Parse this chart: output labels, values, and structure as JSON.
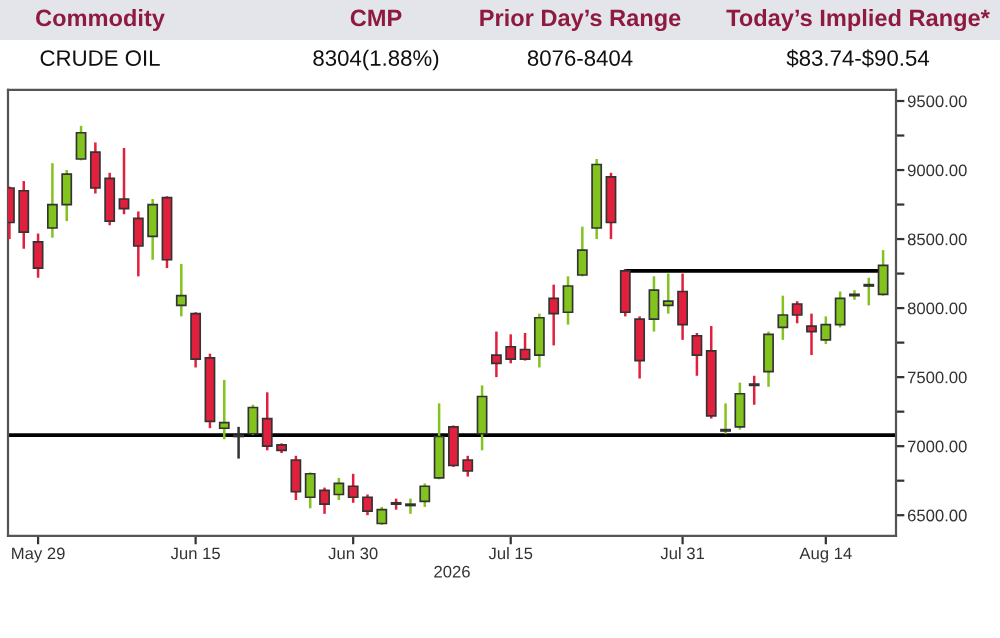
{
  "chart_data": {
    "type": "candlestick",
    "annotations": [
      "Commodity",
      "CMP",
      "Prior Day’s Range",
      "Today’s Implied Range*",
      "CRUDE OIL",
      "8304(1.88%)",
      "8076-8404",
      "$83.74-$90.54"
    ],
    "xlabel": "2026",
    "categories": [
      null,
      null,
      "May 29",
      null,
      null,
      null,
      null,
      null,
      null,
      null,
      null,
      null,
      null,
      "Jun 15",
      null,
      null,
      null,
      null,
      null,
      null,
      null,
      null,
      null,
      null,
      "Jun 30",
      null,
      null,
      null,
      null,
      null,
      null,
      null,
      null,
      null,
      null,
      "Jul 15",
      null,
      null,
      null,
      null,
      null,
      null,
      null,
      null,
      null,
      null,
      null,
      "Jul 31",
      null,
      null,
      null,
      null,
      null,
      null,
      null,
      null,
      null,
      "Aug 14",
      null,
      null,
      null,
      null
    ],
    "ohlc": [
      [
        8870,
        8880,
        8500,
        8620
      ],
      [
        8850,
        8920,
        8430,
        8550
      ],
      [
        8480,
        8540,
        8220,
        8290
      ],
      [
        8580,
        9050,
        8510,
        8750
      ],
      [
        8750,
        9000,
        8630,
        8970
      ],
      [
        9080,
        9320,
        9070,
        9270
      ],
      [
        9130,
        9200,
        8830,
        8870
      ],
      [
        8940,
        8980,
        8600,
        8630
      ],
      [
        8790,
        9160,
        8680,
        8720
      ],
      [
        8650,
        8700,
        8230,
        8450
      ],
      [
        8520,
        8790,
        8350,
        8750
      ],
      [
        8800,
        8810,
        8290,
        8350
      ],
      [
        8020,
        8320,
        7940,
        8090
      ],
      [
        7960,
        7970,
        7570,
        7630
      ],
      [
        7640,
        7670,
        7130,
        7180
      ],
      [
        7130,
        7480,
        7050,
        7170
      ],
      [
        7070,
        7140,
        6910,
        7080
      ],
      [
        7090,
        7300,
        7080,
        7280
      ],
      [
        7200,
        7390,
        6970,
        7000
      ],
      [
        7010,
        7020,
        6950,
        6970
      ],
      [
        6900,
        6930,
        6610,
        6670
      ],
      [
        6630,
        6810,
        6550,
        6800
      ],
      [
        6680,
        6700,
        6510,
        6580
      ],
      [
        6650,
        6770,
        6610,
        6730
      ],
      [
        6710,
        6800,
        6590,
        6630
      ],
      [
        6630,
        6650,
        6500,
        6530
      ],
      [
        6440,
        6560,
        6430,
        6540
      ],
      [
        6590,
        6620,
        6540,
        6580
      ],
      [
        6570,
        6620,
        6510,
        6580
      ],
      [
        6600,
        6730,
        6560,
        6710
      ],
      [
        6770,
        7310,
        6760,
        7070
      ],
      [
        7140,
        7150,
        6850,
        6860
      ],
      [
        6900,
        6930,
        6780,
        6820
      ],
      [
        7090,
        7440,
        6970,
        7360
      ],
      [
        7660,
        7830,
        7500,
        7600
      ],
      [
        7720,
        7810,
        7600,
        7630
      ],
      [
        7700,
        7820,
        7620,
        7630
      ],
      [
        7660,
        7960,
        7570,
        7930
      ],
      [
        8070,
        8170,
        7730,
        7960
      ],
      [
        7970,
        8230,
        7880,
        8160
      ],
      [
        8240,
        8590,
        8230,
        8420
      ],
      [
        8580,
        9080,
        8500,
        9040
      ],
      [
        8950,
        8980,
        8500,
        8620
      ],
      [
        8270,
        8280,
        7940,
        7970
      ],
      [
        7920,
        7940,
        7490,
        7620
      ],
      [
        7920,
        8230,
        7830,
        8130
      ],
      [
        8020,
        8250,
        7960,
        8050
      ],
      [
        8120,
        8250,
        7770,
        7880
      ],
      [
        7800,
        7820,
        7510,
        7660
      ],
      [
        7690,
        7870,
        7200,
        7220
      ],
      [
        7110,
        7310,
        7090,
        7120
      ],
      [
        7140,
        7460,
        7120,
        7380
      ],
      [
        7450,
        7510,
        7300,
        7440
      ],
      [
        7540,
        7830,
        7430,
        7810
      ],
      [
        7860,
        8090,
        7770,
        7950
      ],
      [
        8030,
        8050,
        7890,
        7950
      ],
      [
        7870,
        7960,
        7660,
        7830
      ],
      [
        7770,
        7940,
        7740,
        7880
      ],
      [
        7880,
        8120,
        7860,
        8070
      ],
      [
        8090,
        8130,
        8060,
        8100
      ],
      [
        8160,
        8220,
        8020,
        8170
      ],
      [
        8100,
        8420,
        8090,
        8310
      ]
    ],
    "colors": [
      "#e0203c",
      "#e0203c",
      "#e0203c",
      "#82c31e",
      "#82c31e",
      "#82c31e",
      "#e0203c",
      "#e0203c",
      "#e0203c",
      "#e0203c",
      "#82c31e",
      "#e0203c",
      "#82c31e",
      "#e0203c",
      "#e0203c",
      "#82c31e",
      "#333333",
      "#82c31e",
      "#e0203c",
      "#e0203c",
      "#e0203c",
      "#82c31e",
      "#e0203c",
      "#82c31e",
      "#e0203c",
      "#e0203c",
      "#82c31e",
      "#e0203c",
      "#82c31e",
      "#82c31e",
      "#82c31e",
      "#e0203c",
      "#e0203c",
      "#82c31e",
      "#e0203c",
      "#e0203c",
      "#e0203c",
      "#82c31e",
      "#e0203c",
      "#82c31e",
      "#82c31e",
      "#82c31e",
      "#e0203c",
      "#e0203c",
      "#e0203c",
      "#82c31e",
      "#82c31e",
      "#e0203c",
      "#e0203c",
      "#e0203c",
      "#82c31e",
      "#82c31e",
      "#e0203c",
      "#82c31e",
      "#82c31e",
      "#e0203c",
      "#e0203c",
      "#82c31e",
      "#82c31e",
      "#82c31e",
      "#82c31e",
      "#82c31e"
    ],
    "series": [
      {
        "type": "line",
        "values": [
          null,
          null,
          null,
          null,
          null,
          null,
          null,
          null,
          null,
          null,
          null,
          null,
          null,
          null,
          null,
          null,
          null,
          null,
          null,
          null,
          null,
          null,
          null,
          null,
          null,
          null,
          null,
          null,
          null,
          null,
          null,
          null,
          null,
          null,
          null,
          null,
          null,
          null,
          null,
          null,
          null,
          null,
          null,
          8270,
          8270,
          8270,
          8270,
          8270,
          8270,
          8270,
          8270,
          8270,
          8270,
          8270,
          8270,
          8270,
          8270,
          8270,
          8270,
          8270,
          8270,
          8270
        ],
        "color": "#000000"
      }
    ],
    "ref_lines": [
      {
        "axis": "y",
        "value": 7080,
        "color": "#000000"
      }
    ],
    "ylim": [
      6350,
      9580
    ],
    "yticks": [
      {
        "value": 6500,
        "label": "6500.00"
      },
      {
        "value": 6750,
        "label": null
      },
      {
        "value": 7000,
        "label": "7000.00"
      },
      {
        "value": 7250,
        "label": null
      },
      {
        "value": 7500,
        "label": "7500.00"
      },
      {
        "value": 7750,
        "label": null
      },
      {
        "value": 8000,
        "label": "8000.00"
      },
      {
        "value": 8250,
        "label": null
      },
      {
        "value": 8500,
        "label": "8500.00"
      },
      {
        "value": 8750,
        "label": null
      },
      {
        "value": 9000,
        "label": "9000.00"
      },
      {
        "value": 9250,
        "label": null
      },
      {
        "value": 9500,
        "label": "9500.00"
      }
    ],
    "grid": false
  }
}
